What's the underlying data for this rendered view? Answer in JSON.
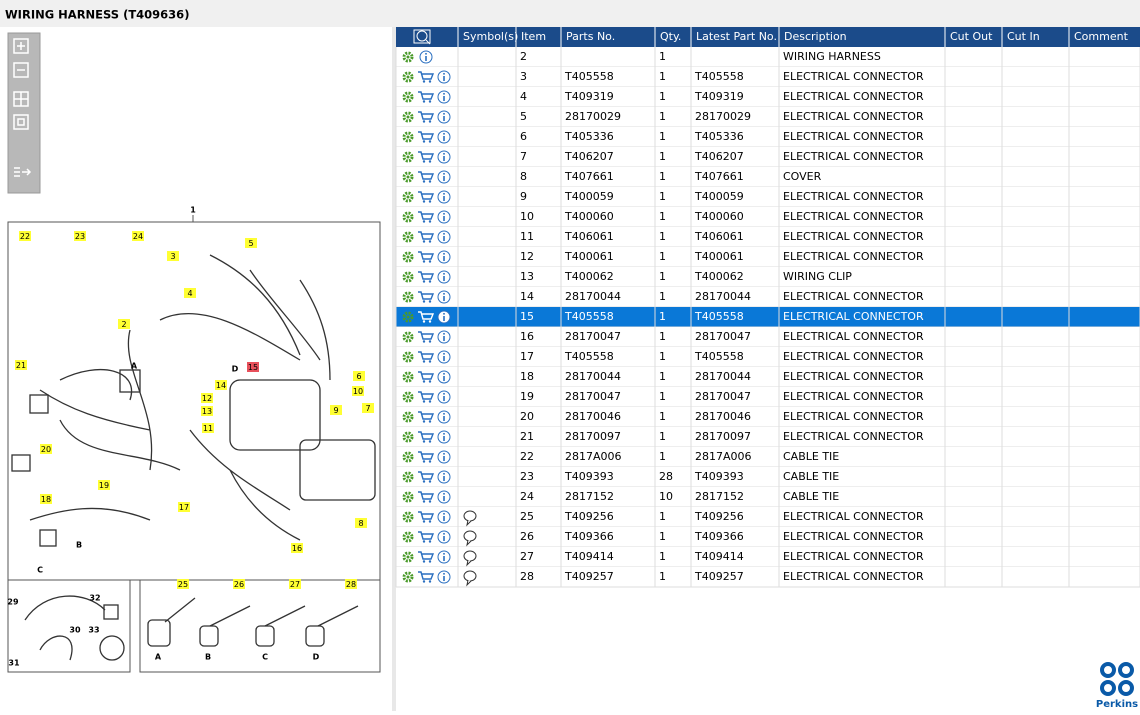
{
  "header": {
    "title": "WIRING HARNESS (T409636)"
  },
  "table": {
    "columns": [
      "Symbol(s)",
      "Item",
      "Parts No.",
      "Qty.",
      "Latest Part No.",
      "Description",
      "Cut Out",
      "Cut In",
      "Comment"
    ],
    "rows": [
      {
        "item": 2,
        "qty": 1,
        "description": "WIRING HARNESS",
        "cart": false
      },
      {
        "item": 3,
        "parts_no": "T405558",
        "qty": 1,
        "latest_part_no": "T405558",
        "description": "ELECTRICAL CONNECTOR"
      },
      {
        "item": 4,
        "parts_no": "T409319",
        "qty": 1,
        "latest_part_no": "T409319",
        "description": "ELECTRICAL CONNECTOR"
      },
      {
        "item": 5,
        "parts_no": "28170029",
        "qty": 1,
        "latest_part_no": "28170029",
        "description": "ELECTRICAL CONNECTOR"
      },
      {
        "item": 6,
        "parts_no": "T405336",
        "qty": 1,
        "latest_part_no": "T405336",
        "description": "ELECTRICAL CONNECTOR"
      },
      {
        "item": 7,
        "parts_no": "T406207",
        "qty": 1,
        "latest_part_no": "T406207",
        "description": "ELECTRICAL CONNECTOR"
      },
      {
        "item": 8,
        "parts_no": "T407661",
        "qty": 1,
        "latest_part_no": "T407661",
        "description": "COVER"
      },
      {
        "item": 9,
        "parts_no": "T400059",
        "qty": 1,
        "latest_part_no": "T400059",
        "description": "ELECTRICAL CONNECTOR"
      },
      {
        "item": 10,
        "parts_no": "T400060",
        "qty": 1,
        "latest_part_no": "T400060",
        "description": "ELECTRICAL CONNECTOR"
      },
      {
        "item": 11,
        "parts_no": "T406061",
        "qty": 1,
        "latest_part_no": "T406061",
        "description": "ELECTRICAL CONNECTOR"
      },
      {
        "item": 12,
        "parts_no": "T400061",
        "qty": 1,
        "latest_part_no": "T400061",
        "description": "ELECTRICAL CONNECTOR"
      },
      {
        "item": 13,
        "parts_no": "T400062",
        "qty": 1,
        "latest_part_no": "T400062",
        "description": "WIRING CLIP"
      },
      {
        "item": 14,
        "parts_no": "28170044",
        "qty": 1,
        "latest_part_no": "28170044",
        "description": "ELECTRICAL CONNECTOR"
      },
      {
        "item": 15,
        "parts_no": "T405558",
        "qty": 1,
        "latest_part_no": "T405558",
        "description": "ELECTRICAL CONNECTOR",
        "selected": true
      },
      {
        "item": 16,
        "parts_no": "28170047",
        "qty": 1,
        "latest_part_no": "28170047",
        "description": "ELECTRICAL CONNECTOR"
      },
      {
        "item": 17,
        "parts_no": "T405558",
        "qty": 1,
        "latest_part_no": "T405558",
        "description": "ELECTRICAL CONNECTOR"
      },
      {
        "item": 18,
        "parts_no": "28170044",
        "qty": 1,
        "latest_part_no": "28170044",
        "description": "ELECTRICAL CONNECTOR"
      },
      {
        "item": 19,
        "parts_no": "28170047",
        "qty": 1,
        "latest_part_no": "28170047",
        "description": "ELECTRICAL CONNECTOR"
      },
      {
        "item": 20,
        "parts_no": "28170046",
        "qty": 1,
        "latest_part_no": "28170046",
        "description": "ELECTRICAL CONNECTOR"
      },
      {
        "item": 21,
        "parts_no": "28170097",
        "qty": 1,
        "latest_part_no": "28170097",
        "description": "ELECTRICAL CONNECTOR"
      },
      {
        "item": 22,
        "parts_no": "2817A006",
        "qty": 1,
        "latest_part_no": "2817A006",
        "description": "CABLE TIE"
      },
      {
        "item": 23,
        "parts_no": "T409393",
        "qty": 28,
        "latest_part_no": "T409393",
        "description": "CABLE TIE"
      },
      {
        "item": 24,
        "parts_no": "2817152",
        "qty": 10,
        "latest_part_no": "2817152",
        "description": "CABLE TIE"
      },
      {
        "item": 25,
        "parts_no": "T409256",
        "qty": 1,
        "latest_part_no": "T409256",
        "description": "ELECTRICAL CONNECTOR",
        "comment_symbol": true
      },
      {
        "item": 26,
        "parts_no": "T409366",
        "qty": 1,
        "latest_part_no": "T409366",
        "description": "ELECTRICAL CONNECTOR",
        "comment_symbol": true
      },
      {
        "item": 27,
        "parts_no": "T409414",
        "qty": 1,
        "latest_part_no": "T409414",
        "description": "ELECTRICAL CONNECTOR",
        "comment_symbol": true
      },
      {
        "item": 28,
        "parts_no": "T409257",
        "qty": 1,
        "latest_part_no": "T409257",
        "description": "ELECTRICAL CONNECTOR",
        "comment_symbol": true
      }
    ]
  },
  "diagram": {
    "callouts": [
      {
        "label": "22"
      },
      {
        "label": "23"
      },
      {
        "label": "24"
      },
      {
        "label": "5"
      },
      {
        "label": "3"
      },
      {
        "label": "4"
      },
      {
        "label": "2"
      },
      {
        "label": "21"
      },
      {
        "label": "15",
        "highlighted": true
      },
      {
        "label": "14"
      },
      {
        "label": "6"
      },
      {
        "label": "10"
      },
      {
        "label": "12"
      },
      {
        "label": "13"
      },
      {
        "label": "7"
      },
      {
        "label": "9"
      },
      {
        "label": "11"
      },
      {
        "label": "20"
      },
      {
        "label": "19"
      },
      {
        "label": "18"
      },
      {
        "label": "17"
      },
      {
        "label": "8"
      },
      {
        "label": "16"
      },
      {
        "label": "25"
      },
      {
        "label": "26"
      },
      {
        "label": "27"
      },
      {
        "label": "28"
      }
    ],
    "labels": [
      "1",
      "A",
      "D",
      "B",
      "C",
      "29",
      "32",
      "30",
      "33",
      "31",
      "A",
      "B",
      "C",
      "D"
    ]
  },
  "logo": {
    "text": "Perkins"
  }
}
